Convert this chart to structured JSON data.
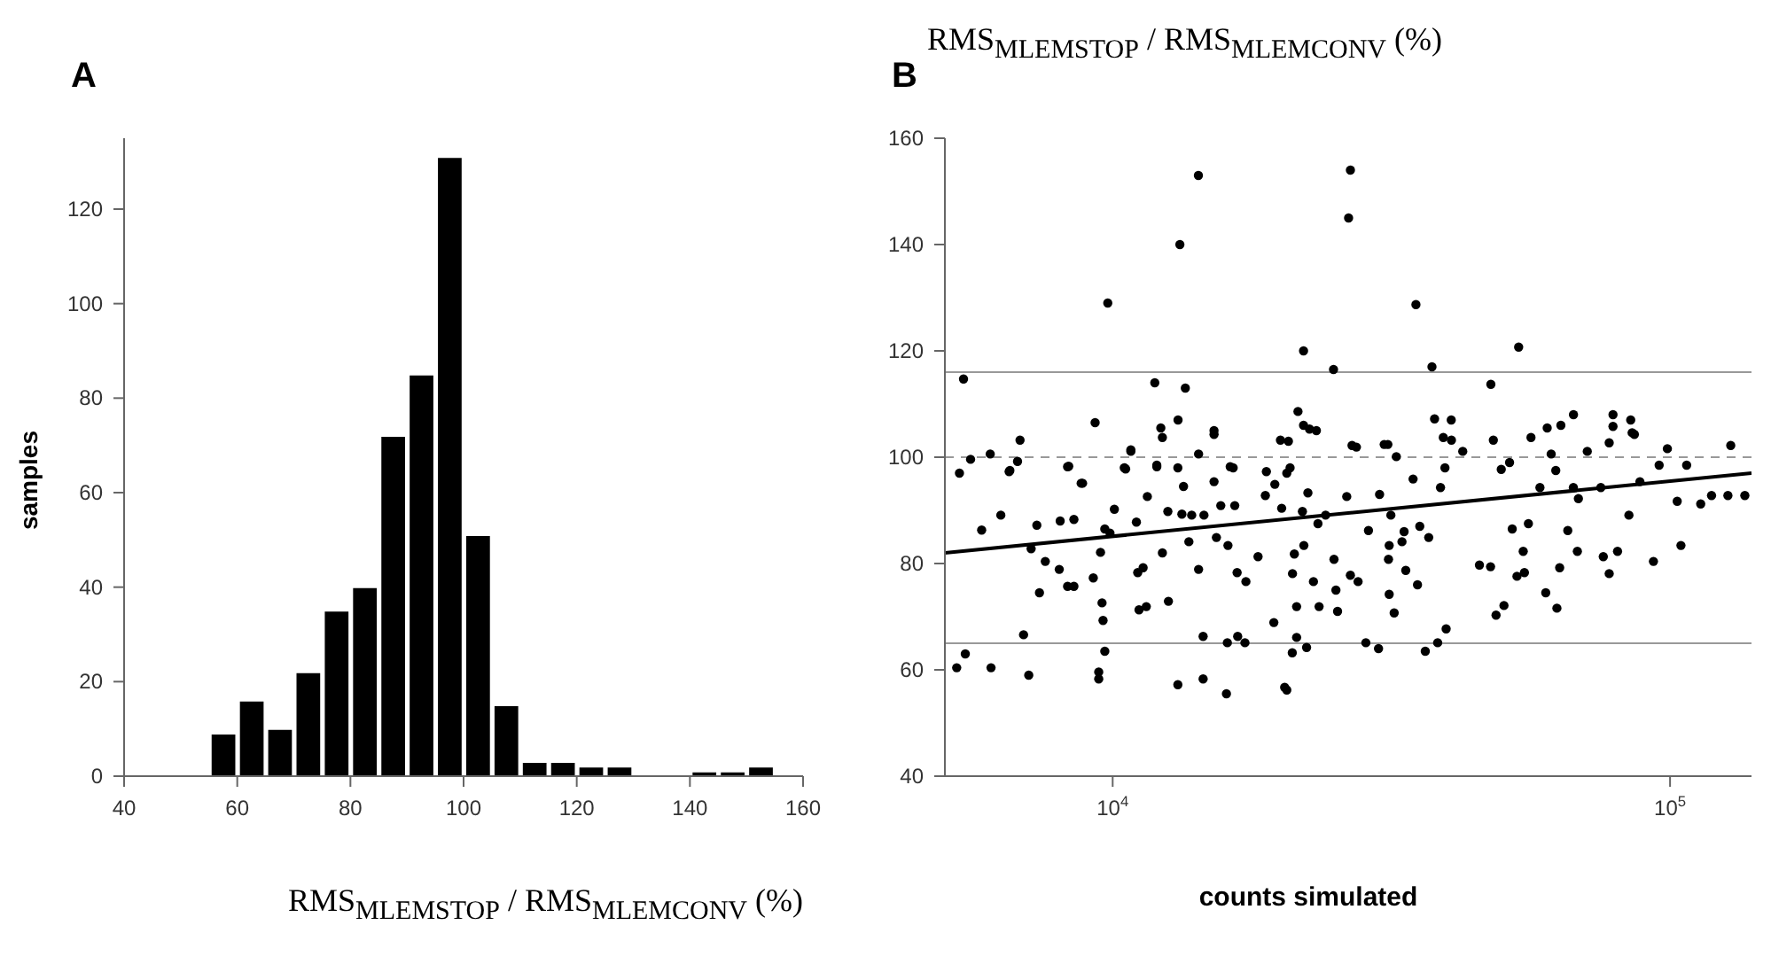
{
  "chart_data": [
    {
      "type": "histogram",
      "title": "A",
      "xlabel": "RMS$_{MLEMSTOP}$ / RMS$_{MLEMCONV}$ (%)",
      "ylabel": "samples",
      "color": "#000000",
      "bins": [
        55,
        60,
        65,
        70,
        75,
        80,
        85,
        90,
        95,
        100,
        105,
        110,
        115,
        120,
        125,
        130,
        135,
        140,
        145,
        150,
        155
      ],
      "values": [
        9,
        16,
        10,
        22,
        35,
        40,
        72,
        85,
        131,
        51,
        15,
        3,
        3,
        2,
        2,
        0,
        0,
        1,
        1,
        2
      ],
      "xlim": [
        40,
        160
      ],
      "xticks": [
        40,
        60,
        80,
        100,
        120,
        140,
        160
      ],
      "ylim": [
        0,
        135
      ],
      "yticks": [
        0,
        20,
        40,
        60,
        80,
        100,
        120
      ],
      "grid": false,
      "legend": false
    },
    {
      "type": "scatter",
      "title": "B",
      "ylabel": "RMS$_{MLEMSTOP}$ / RMS$_{MLEMCONV}$ (%)",
      "xlabel": "counts simulated",
      "log": "x",
      "grid": false,
      "legend": false,
      "xlim": [
        5000,
        140000
      ],
      "xticks": [
        {
          "value": 10000,
          "label": "10$^{4}$"
        },
        {
          "value": 100000,
          "label": "10$^{5}$"
        }
      ],
      "ylim": [
        40,
        160
      ],
      "yticks": [
        40,
        60,
        80,
        100,
        120,
        140,
        160
      ],
      "ref_lines": [
        {
          "axis": "y",
          "value": 116,
          "color": "#999999",
          "line_style": "solid"
        },
        {
          "axis": "y",
          "value": 100,
          "color": "#999999",
          "line_style": "dashed"
        },
        {
          "axis": "y",
          "value": 65,
          "color": "#999999",
          "line_style": "solid"
        }
      ],
      "series": [
        {
          "type": "scatter",
          "marker": "circle",
          "color": "#000000",
          "x": [
            14250,
            26700,
            26500,
            13200,
            9800,
            35000,
            22000,
            53500,
            37400,
            24900,
            5400,
            11900,
            13500,
            47700,
            67100,
            79000,
            85000,
            85500,
            79000,
            21500,
            22000,
            23200,
            15200,
            13100,
            12200,
            9300,
            37800,
            40500,
            60200,
            63700,
            5310,
            5560,
            6030,
            5820,
            6300,
            6540,
            6820,
            6750,
            7140,
            7310,
            7390,
            7570,
            8050,
            8300,
            8020,
            8300,
            8830,
            8520,
            8520,
            9230,
            9510,
            9570,
            9680,
            9890,
            9610,
            10070,
            10490,
            10780,
            11030,
            11090,
            11340,
            11150,
            11490,
            11540,
            12000,
            12280,
            12560,
            12590,
            13090,
            13400,
            13310,
            13700,
            13860,
            14260,
            14260,
            14580,
            14530,
            15200,
            15200,
            15350,
            15630,
            16250,
            16100,
            16560,
            16720,
            17340,
            16760,
            16060,
            16000,
            17270,
            18230,
            18790,
            19540,
            19460,
            20000,
            20100,
            20530,
            20810,
            21020,
            21180,
            21380,
            21380,
            22030,
            22400,
            21900,
            22550,
            22920,
            23350,
            23460,
            24100,
            24950,
            25150,
            25320,
            26300,
            26700,
            27370,
            27560,
            28770,
            28460,
            29990,
            30120,
            30700,
            31250,
            31340,
            31340,
            31990,
            31560,
            32280,
            33040,
            33330,
            33560,
            34590,
            35230,
            35560,
            36380,
            36900,
            38290,
            38740,
            39190,
            39650,
            39460,
            40530,
            42470,
            45500,
            47640,
            48190,
            48730,
            50350,
            49790,
            51530,
            52100,
            53130,
            54520,
            54790,
            55700,
            56300,
            58420,
            59840,
            61200,
            62660,
            62370,
            63380,
            65540,
            67070,
            68190,
            68480,
            71040,
            75130,
            75900,
            77770,
            77770,
            80500,
            84370,
            86300,
            88300,
            93370,
            95590,
            98900,
            103000,
            104600,
            107100,
            113500,
            118700,
            128500,
            127000,
            136200,
            5250,
            5440,
            6050,
            7070,
            9440,
            9440,
            9680,
            13090,
            14530,
            20350,
            20530,
            6920,
            21000,
            22280,
            8340,
            6520,
            8780,
            10550,
            10780,
            12000,
            12280,
            16450,
            18870,
            20670,
            26880,
            31170
          ],
          "values": [
            153,
            154,
            145,
            140,
            129,
            128.7,
            120,
            120.7,
            117,
            116.5,
            114.7,
            114,
            113,
            113.7,
            108,
            108,
            107,
            104.6,
            105.8,
            108.6,
            106,
            105,
            105,
            107,
            105.5,
            106.5,
            107.2,
            107,
            105.5,
            106,
            97,
            99.6,
            100.6,
            86.3,
            89.1,
            97.5,
            103.2,
            99.2,
            82.8,
            87.2,
            74.5,
            80.4,
            88,
            98.2,
            78.9,
            75.7,
            95.1,
            88.3,
            75.7,
            77.3,
            82.1,
            72.6,
            86.5,
            85.7,
            69.3,
            90.2,
            98,
            101.1,
            87.8,
            78.3,
            79.2,
            71.3,
            71.9,
            92.6,
            98.2,
            82,
            89.8,
            72.9,
            98,
            94.5,
            89.3,
            84.1,
            89.1,
            100.6,
            78.9,
            89.1,
            66.3,
            95.4,
            104.3,
            84.9,
            90.9,
            98.2,
            83.4,
            90.9,
            78.3,
            76.6,
            66.3,
            65.1,
            55.5,
            65.1,
            81.3,
            92.8,
            94.9,
            68.9,
            103.2,
            90.4,
            97,
            98,
            78.1,
            81.8,
            71.9,
            66.1,
            83.4,
            93.3,
            89.8,
            105.3,
            76.6,
            87.5,
            71.9,
            89.1,
            80.8,
            75,
            71,
            92.6,
            77.8,
            101.9,
            76.6,
            86.2,
            65.1,
            64,
            93,
            102.4,
            80.8,
            83.4,
            74.2,
            70.7,
            89.1,
            100.1,
            84.1,
            86,
            78.7,
            95.9,
            76,
            87,
            63.5,
            84.9,
            65.1,
            94.3,
            103.7,
            67.7,
            98,
            103.2,
            101.1,
            79.7,
            79.4,
            103.2,
            70.3,
            72.1,
            97.7,
            99,
            86.5,
            77.6,
            82.3,
            78.3,
            87.5,
            103.7,
            94.3,
            74.5,
            100.6,
            71.6,
            97.5,
            79.2,
            86.2,
            94.3,
            82.3,
            92.2,
            101.1,
            94.3,
            81.3,
            78.1,
            102.7,
            82.3,
            89.1,
            104.3,
            95.4,
            80.4,
            98.5,
            101.6,
            91.7,
            83.4,
            98.5,
            91.2,
            92.8,
            102.2,
            92.8,
            92.8,
            60.4,
            63,
            60.4,
            59,
            59.6,
            58.3,
            63.5,
            57.2,
            58.3,
            56.7,
            56.2,
            66.6,
            63.2,
            64.2,
            98.3,
            97.3,
            95.1,
            97.8,
            101.4,
            98.5,
            103.7,
            98,
            97.3,
            103,
            102.2,
            102.4
          ]
        },
        {
          "type": "line",
          "marker": "none",
          "color": "#000000",
          "x": [
            5000,
            140000
          ],
          "values": [
            82,
            97
          ]
        }
      ]
    }
  ]
}
